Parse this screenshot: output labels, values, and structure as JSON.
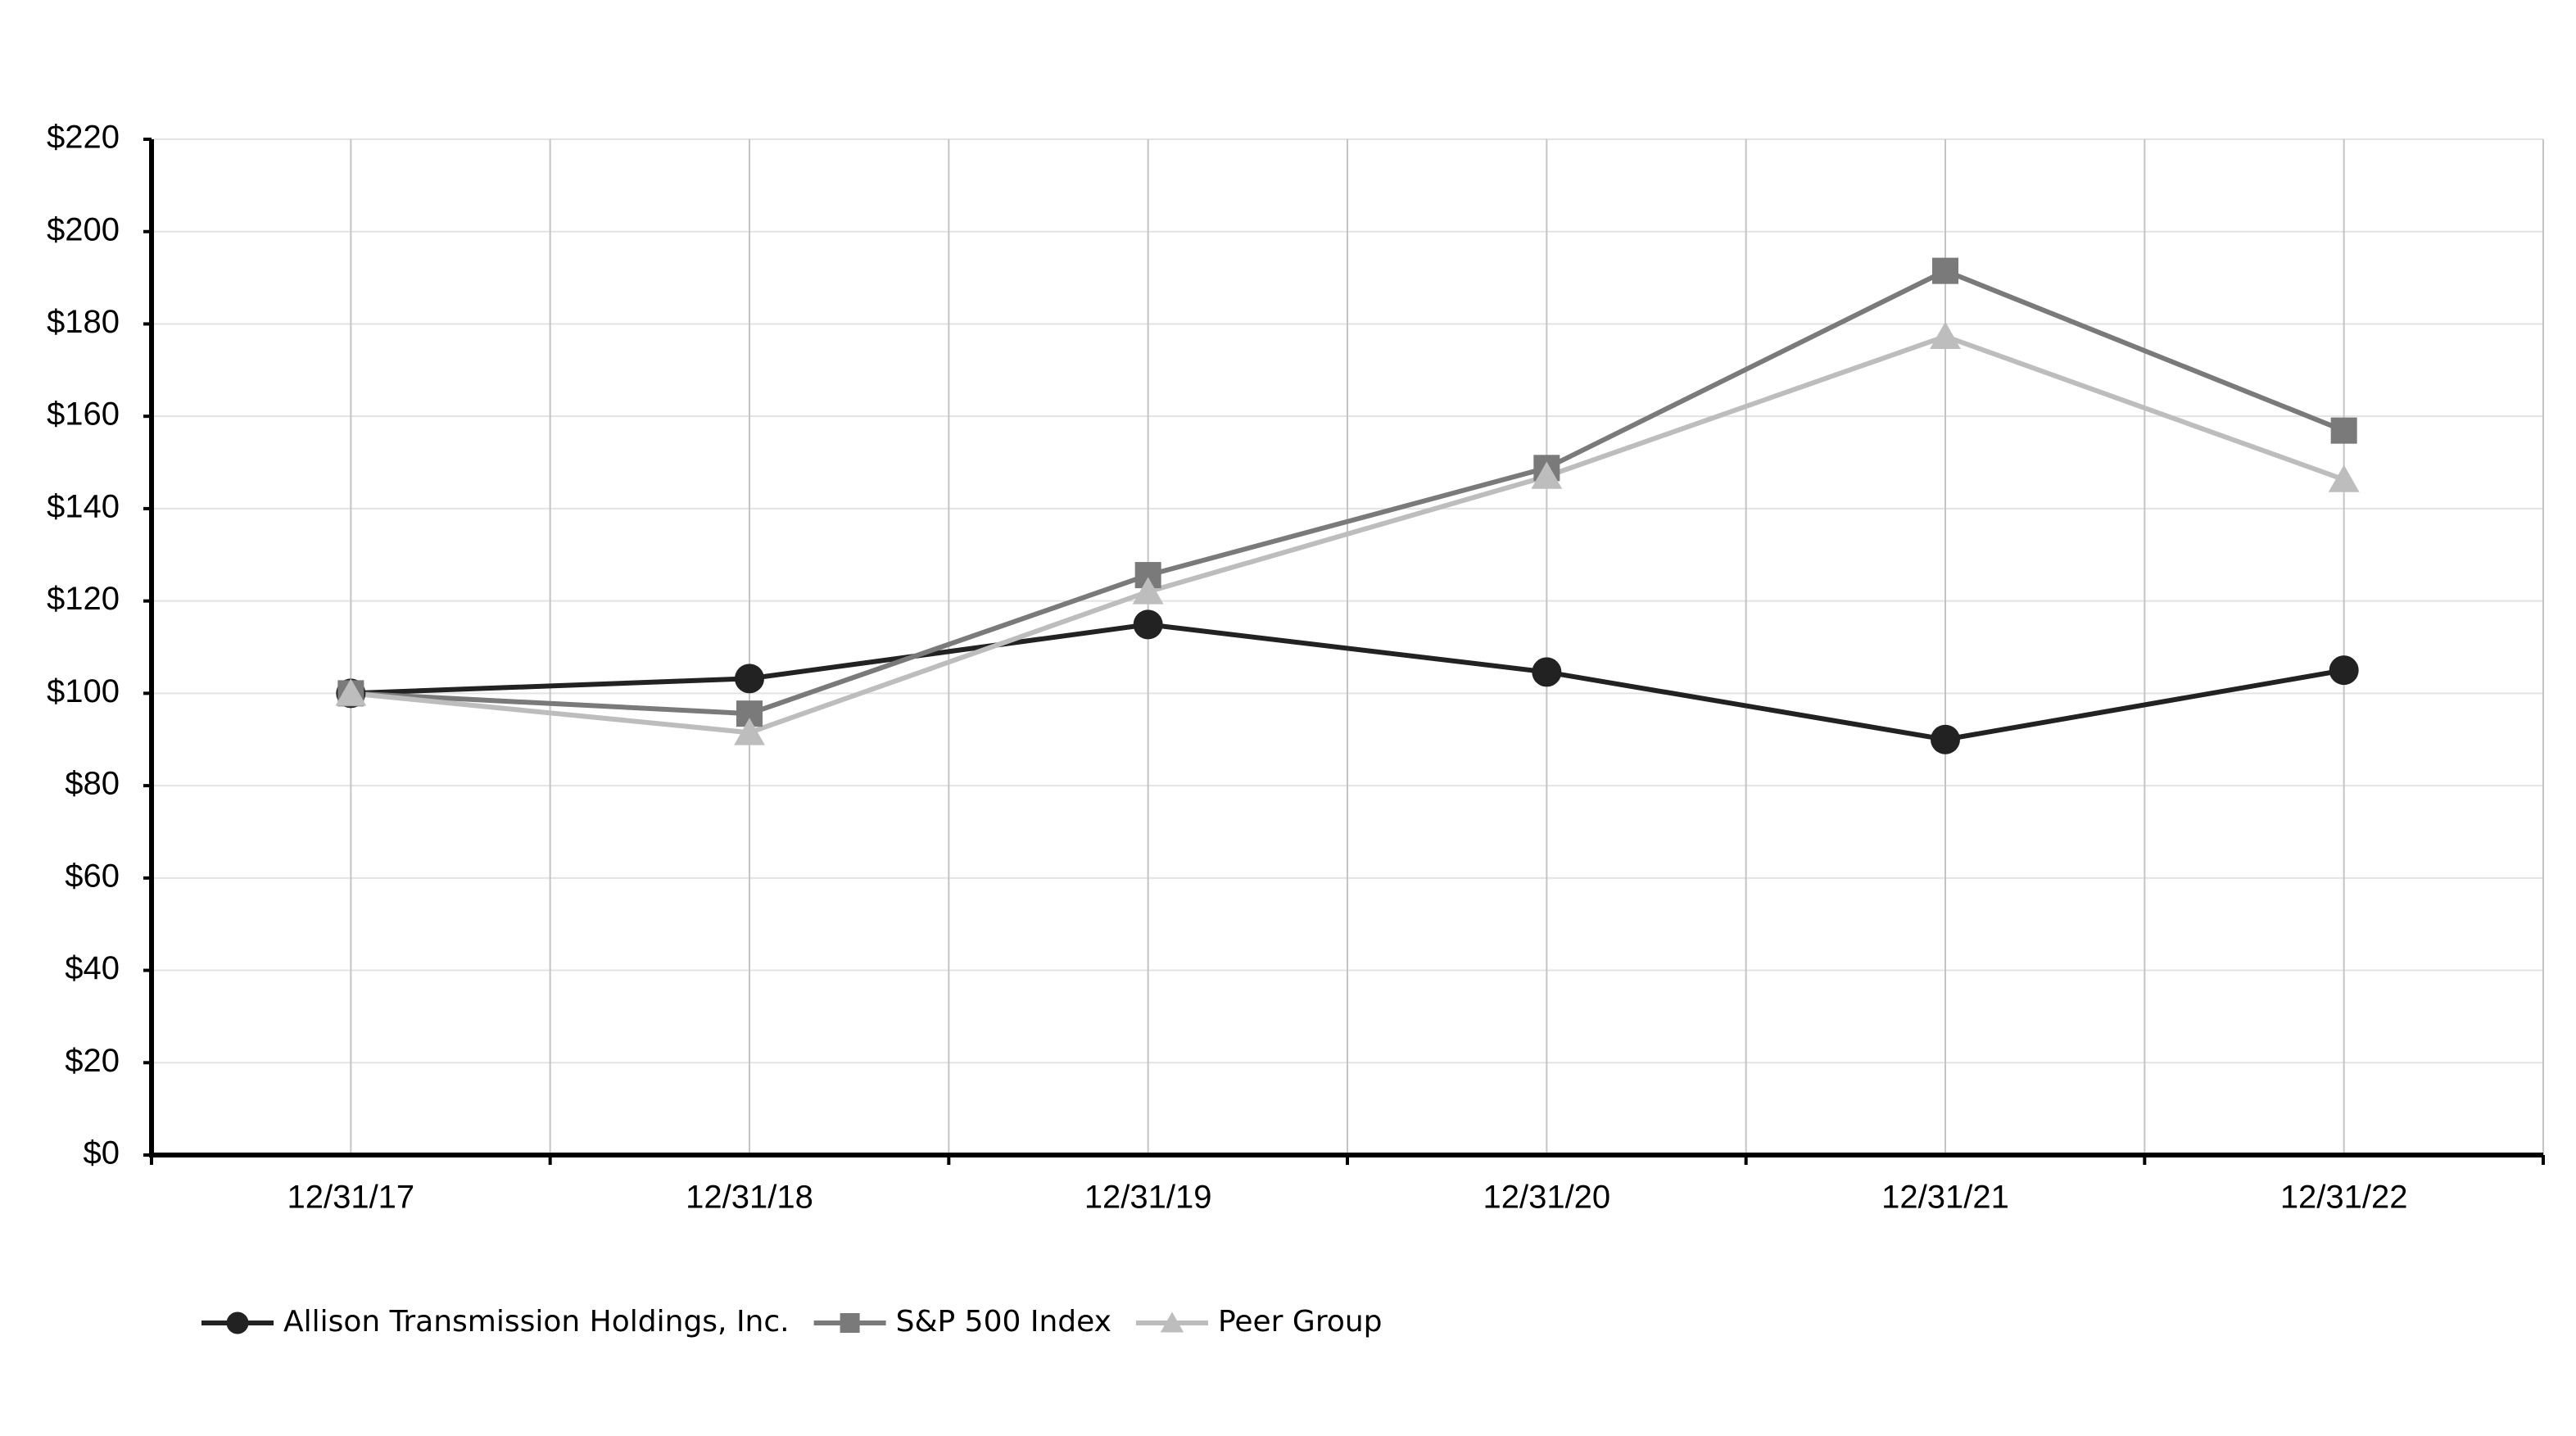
{
  "chart_data": {
    "type": "line",
    "categories": [
      "12/31/17",
      "12/31/18",
      "12/31/19",
      "12/31/20",
      "12/31/21",
      "12/31/22"
    ],
    "series": [
      {
        "name": "Allison Transmission Holdings, Inc.",
        "color": "#222222",
        "marker": "circle",
        "values": [
          100,
          103.2,
          114.9,
          104.6,
          90,
          105
        ]
      },
      {
        "name": "S&P 500 Index",
        "color": "#7a7a7a",
        "marker": "square",
        "values": [
          100,
          95.6,
          125.6,
          148.8,
          191.5,
          156.9
        ]
      },
      {
        "name": "Peer Group",
        "color": "#bdbdbd",
        "marker": "triangle",
        "values": [
          100,
          91.5,
          122,
          147,
          177.3,
          146.3
        ]
      }
    ],
    "ylim": [
      0,
      220
    ],
    "yticks": [
      {
        "value": 0,
        "label": "$0"
      },
      {
        "value": 20,
        "label": "$20"
      },
      {
        "value": 40,
        "label": "$40"
      },
      {
        "value": 60,
        "label": "$60"
      },
      {
        "value": 80,
        "label": "$80"
      },
      {
        "value": 100,
        "label": "$100"
      },
      {
        "value": 120,
        "label": "$120"
      },
      {
        "value": 140,
        "label": "$140"
      },
      {
        "value": 160,
        "label": "$160"
      },
      {
        "value": 180,
        "label": "$180"
      },
      {
        "value": 200,
        "label": "$200"
      },
      {
        "value": 220,
        "label": "$220"
      }
    ],
    "grid": true,
    "legend": "bottom"
  }
}
